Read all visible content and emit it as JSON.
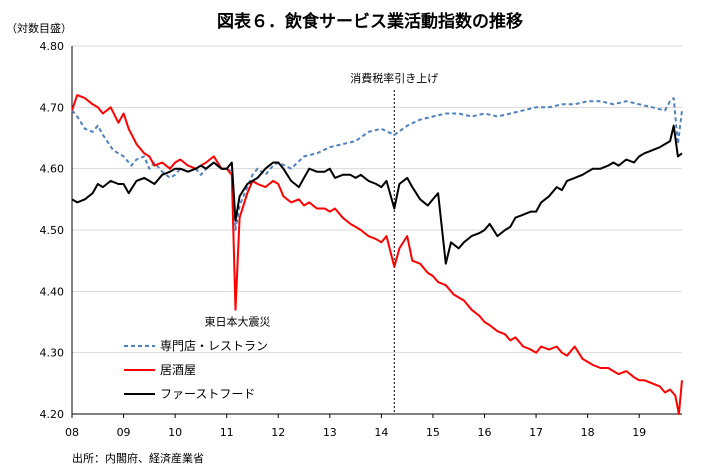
{
  "chart_data": {
    "type": "line",
    "title": "図表６．飲食サービス業活動指数の推移",
    "ylabel": "（対数目盛）",
    "ylim": [
      4.2,
      4.8
    ],
    "yticks": [
      "4.20",
      "4.30",
      "4.40",
      "4.50",
      "4.60",
      "4.70",
      "4.80"
    ],
    "xlim": [
      2008.0,
      2019.83
    ],
    "xticks": [
      "08",
      "09",
      "10",
      "11",
      "12",
      "13",
      "14",
      "15",
      "16",
      "17",
      "18",
      "19"
    ],
    "source": "出所：内閣府、経済産業省",
    "annotations": [
      {
        "text": "消費税率引き上げ",
        "x": 2014.25,
        "type": "vline"
      },
      {
        "text": "東日本大震災",
        "x": 2011.17,
        "y": 4.37,
        "type": "label"
      }
    ],
    "series": [
      {
        "name": "専門店・レストラン",
        "color": "#4F81BD",
        "style": "dashed",
        "points": [
          [
            2008.0,
            4.695
          ],
          [
            2008.1,
            4.685
          ],
          [
            2008.25,
            4.665
          ],
          [
            2008.4,
            4.66
          ],
          [
            2008.5,
            4.67
          ],
          [
            2008.6,
            4.655
          ],
          [
            2008.8,
            4.63
          ],
          [
            2009.0,
            4.62
          ],
          [
            2009.15,
            4.605
          ],
          [
            2009.25,
            4.615
          ],
          [
            2009.4,
            4.62
          ],
          [
            2009.5,
            4.6
          ],
          [
            2009.6,
            4.61
          ],
          [
            2009.75,
            4.595
          ],
          [
            2009.9,
            4.585
          ],
          [
            2010.0,
            4.59
          ],
          [
            2010.1,
            4.6
          ],
          [
            2010.25,
            4.595
          ],
          [
            2010.4,
            4.6
          ],
          [
            2010.5,
            4.59
          ],
          [
            2010.6,
            4.6
          ],
          [
            2010.75,
            4.61
          ],
          [
            2010.9,
            4.6
          ],
          [
            2011.0,
            4.6
          ],
          [
            2011.1,
            4.595
          ],
          [
            2011.17,
            4.5
          ],
          [
            2011.25,
            4.54
          ],
          [
            2011.4,
            4.57
          ],
          [
            2011.5,
            4.59
          ],
          [
            2011.6,
            4.6
          ],
          [
            2011.75,
            4.59
          ],
          [
            2011.9,
            4.605
          ],
          [
            2012.0,
            4.61
          ],
          [
            2012.25,
            4.6
          ],
          [
            2012.5,
            4.62
          ],
          [
            2012.75,
            4.625
          ],
          [
            2013.0,
            4.635
          ],
          [
            2013.25,
            4.64
          ],
          [
            2013.5,
            4.645
          ],
          [
            2013.75,
            4.66
          ],
          [
            2014.0,
            4.665
          ],
          [
            2014.25,
            4.655
          ],
          [
            2014.5,
            4.67
          ],
          [
            2014.75,
            4.68
          ],
          [
            2015.0,
            4.685
          ],
          [
            2015.25,
            4.69
          ],
          [
            2015.5,
            4.69
          ],
          [
            2015.75,
            4.685
          ],
          [
            2016.0,
            4.69
          ],
          [
            2016.25,
            4.685
          ],
          [
            2016.5,
            4.69
          ],
          [
            2016.75,
            4.695
          ],
          [
            2017.0,
            4.7
          ],
          [
            2017.25,
            4.7
          ],
          [
            2017.5,
            4.705
          ],
          [
            2017.75,
            4.705
          ],
          [
            2018.0,
            4.71
          ],
          [
            2018.25,
            4.71
          ],
          [
            2018.5,
            4.705
          ],
          [
            2018.75,
            4.71
          ],
          [
            2019.0,
            4.705
          ],
          [
            2019.25,
            4.7
          ],
          [
            2019.5,
            4.695
          ],
          [
            2019.6,
            4.71
          ],
          [
            2019.67,
            4.715
          ],
          [
            2019.75,
            4.64
          ],
          [
            2019.83,
            4.695
          ]
        ]
      },
      {
        "name": "居酒屋",
        "color": "#FF0000",
        "style": "solid",
        "points": [
          [
            2008.0,
            4.695
          ],
          [
            2008.1,
            4.72
          ],
          [
            2008.25,
            4.715
          ],
          [
            2008.4,
            4.705
          ],
          [
            2008.5,
            4.7
          ],
          [
            2008.6,
            4.69
          ],
          [
            2008.75,
            4.7
          ],
          [
            2008.9,
            4.675
          ],
          [
            2009.0,
            4.69
          ],
          [
            2009.1,
            4.665
          ],
          [
            2009.25,
            4.64
          ],
          [
            2009.4,
            4.625
          ],
          [
            2009.5,
            4.62
          ],
          [
            2009.6,
            4.605
          ],
          [
            2009.75,
            4.61
          ],
          [
            2009.9,
            4.6
          ],
          [
            2010.0,
            4.61
          ],
          [
            2010.1,
            4.615
          ],
          [
            2010.25,
            4.605
          ],
          [
            2010.4,
            4.6
          ],
          [
            2010.5,
            4.605
          ],
          [
            2010.6,
            4.61
          ],
          [
            2010.75,
            4.62
          ],
          [
            2010.9,
            4.6
          ],
          [
            2011.0,
            4.6
          ],
          [
            2011.1,
            4.59
          ],
          [
            2011.17,
            4.37
          ],
          [
            2011.25,
            4.52
          ],
          [
            2011.4,
            4.56
          ],
          [
            2011.5,
            4.58
          ],
          [
            2011.6,
            4.575
          ],
          [
            2011.75,
            4.57
          ],
          [
            2011.9,
            4.58
          ],
          [
            2012.0,
            4.575
          ],
          [
            2012.1,
            4.555
          ],
          [
            2012.25,
            4.545
          ],
          [
            2012.4,
            4.55
          ],
          [
            2012.5,
            4.54
          ],
          [
            2012.6,
            4.545
          ],
          [
            2012.75,
            4.535
          ],
          [
            2012.9,
            4.535
          ],
          [
            2013.0,
            4.53
          ],
          [
            2013.1,
            4.535
          ],
          [
            2013.25,
            4.52
          ],
          [
            2013.4,
            4.51
          ],
          [
            2013.5,
            4.505
          ],
          [
            2013.6,
            4.5
          ],
          [
            2013.75,
            4.49
          ],
          [
            2013.9,
            4.485
          ],
          [
            2014.0,
            4.48
          ],
          [
            2014.1,
            4.49
          ],
          [
            2014.25,
            4.44
          ],
          [
            2014.35,
            4.47
          ],
          [
            2014.5,
            4.49
          ],
          [
            2014.6,
            4.45
          ],
          [
            2014.75,
            4.445
          ],
          [
            2014.9,
            4.43
          ],
          [
            2015.0,
            4.425
          ],
          [
            2015.1,
            4.415
          ],
          [
            2015.25,
            4.41
          ],
          [
            2015.4,
            4.395
          ],
          [
            2015.5,
            4.39
          ],
          [
            2015.6,
            4.385
          ],
          [
            2015.75,
            4.37
          ],
          [
            2015.9,
            4.36
          ],
          [
            2016.0,
            4.35
          ],
          [
            2016.1,
            4.345
          ],
          [
            2016.25,
            4.335
          ],
          [
            2016.4,
            4.33
          ],
          [
            2016.5,
            4.32
          ],
          [
            2016.6,
            4.325
          ],
          [
            2016.75,
            4.31
          ],
          [
            2016.9,
            4.305
          ],
          [
            2017.0,
            4.3
          ],
          [
            2017.1,
            4.31
          ],
          [
            2017.25,
            4.305
          ],
          [
            2017.4,
            4.31
          ],
          [
            2017.5,
            4.3
          ],
          [
            2017.6,
            4.295
          ],
          [
            2017.75,
            4.31
          ],
          [
            2017.9,
            4.29
          ],
          [
            2018.0,
            4.285
          ],
          [
            2018.1,
            4.28
          ],
          [
            2018.25,
            4.275
          ],
          [
            2018.4,
            4.275
          ],
          [
            2018.5,
            4.27
          ],
          [
            2018.6,
            4.265
          ],
          [
            2018.75,
            4.27
          ],
          [
            2018.9,
            4.26
          ],
          [
            2019.0,
            4.255
          ],
          [
            2019.1,
            4.255
          ],
          [
            2019.25,
            4.25
          ],
          [
            2019.4,
            4.245
          ],
          [
            2019.5,
            4.235
          ],
          [
            2019.6,
            4.24
          ],
          [
            2019.7,
            4.23
          ],
          [
            2019.77,
            4.2
          ],
          [
            2019.83,
            4.255
          ]
        ]
      },
      {
        "name": "ファーストフード",
        "color": "#000000",
        "style": "solid",
        "points": [
          [
            2008.0,
            4.55
          ],
          [
            2008.1,
            4.545
          ],
          [
            2008.25,
            4.55
          ],
          [
            2008.4,
            4.56
          ],
          [
            2008.5,
            4.575
          ],
          [
            2008.6,
            4.57
          ],
          [
            2008.75,
            4.58
          ],
          [
            2008.9,
            4.575
          ],
          [
            2009.0,
            4.575
          ],
          [
            2009.1,
            4.56
          ],
          [
            2009.25,
            4.58
          ],
          [
            2009.4,
            4.585
          ],
          [
            2009.5,
            4.58
          ],
          [
            2009.6,
            4.575
          ],
          [
            2009.75,
            4.59
          ],
          [
            2009.9,
            4.595
          ],
          [
            2010.0,
            4.6
          ],
          [
            2010.1,
            4.6
          ],
          [
            2010.25,
            4.595
          ],
          [
            2010.4,
            4.6
          ],
          [
            2010.5,
            4.605
          ],
          [
            2010.6,
            4.6
          ],
          [
            2010.75,
            4.61
          ],
          [
            2010.9,
            4.6
          ],
          [
            2011.0,
            4.6
          ],
          [
            2011.1,
            4.61
          ],
          [
            2011.17,
            4.515
          ],
          [
            2011.25,
            4.555
          ],
          [
            2011.4,
            4.575
          ],
          [
            2011.5,
            4.58
          ],
          [
            2011.6,
            4.585
          ],
          [
            2011.75,
            4.6
          ],
          [
            2011.9,
            4.61
          ],
          [
            2012.0,
            4.61
          ],
          [
            2012.1,
            4.6
          ],
          [
            2012.25,
            4.58
          ],
          [
            2012.4,
            4.57
          ],
          [
            2012.5,
            4.585
          ],
          [
            2012.6,
            4.6
          ],
          [
            2012.75,
            4.595
          ],
          [
            2012.9,
            4.595
          ],
          [
            2013.0,
            4.6
          ],
          [
            2013.1,
            4.585
          ],
          [
            2013.25,
            4.59
          ],
          [
            2013.4,
            4.59
          ],
          [
            2013.5,
            4.585
          ],
          [
            2013.6,
            4.59
          ],
          [
            2013.75,
            4.58
          ],
          [
            2013.9,
            4.575
          ],
          [
            2014.0,
            4.57
          ],
          [
            2014.1,
            4.58
          ],
          [
            2014.25,
            4.535
          ],
          [
            2014.35,
            4.575
          ],
          [
            2014.5,
            4.585
          ],
          [
            2014.6,
            4.57
          ],
          [
            2014.75,
            4.55
          ],
          [
            2014.9,
            4.54
          ],
          [
            2015.0,
            4.55
          ],
          [
            2015.1,
            4.56
          ],
          [
            2015.25,
            4.445
          ],
          [
            2015.35,
            4.48
          ],
          [
            2015.5,
            4.47
          ],
          [
            2015.6,
            4.48
          ],
          [
            2015.75,
            4.49
          ],
          [
            2015.9,
            4.495
          ],
          [
            2016.0,
            4.5
          ],
          [
            2016.1,
            4.51
          ],
          [
            2016.25,
            4.49
          ],
          [
            2016.4,
            4.5
          ],
          [
            2016.5,
            4.505
          ],
          [
            2016.6,
            4.52
          ],
          [
            2016.75,
            4.525
          ],
          [
            2016.9,
            4.53
          ],
          [
            2017.0,
            4.53
          ],
          [
            2017.1,
            4.545
          ],
          [
            2017.25,
            4.555
          ],
          [
            2017.4,
            4.57
          ],
          [
            2017.5,
            4.565
          ],
          [
            2017.6,
            4.58
          ],
          [
            2017.75,
            4.585
          ],
          [
            2017.9,
            4.59
          ],
          [
            2018.0,
            4.595
          ],
          [
            2018.1,
            4.6
          ],
          [
            2018.25,
            4.6
          ],
          [
            2018.4,
            4.605
          ],
          [
            2018.5,
            4.61
          ],
          [
            2018.6,
            4.605
          ],
          [
            2018.75,
            4.615
          ],
          [
            2018.9,
            4.61
          ],
          [
            2019.0,
            4.62
          ],
          [
            2019.1,
            4.625
          ],
          [
            2019.25,
            4.63
          ],
          [
            2019.4,
            4.635
          ],
          [
            2019.5,
            4.64
          ],
          [
            2019.6,
            4.645
          ],
          [
            2019.67,
            4.67
          ],
          [
            2019.75,
            4.62
          ],
          [
            2019.83,
            4.625
          ]
        ]
      }
    ]
  }
}
